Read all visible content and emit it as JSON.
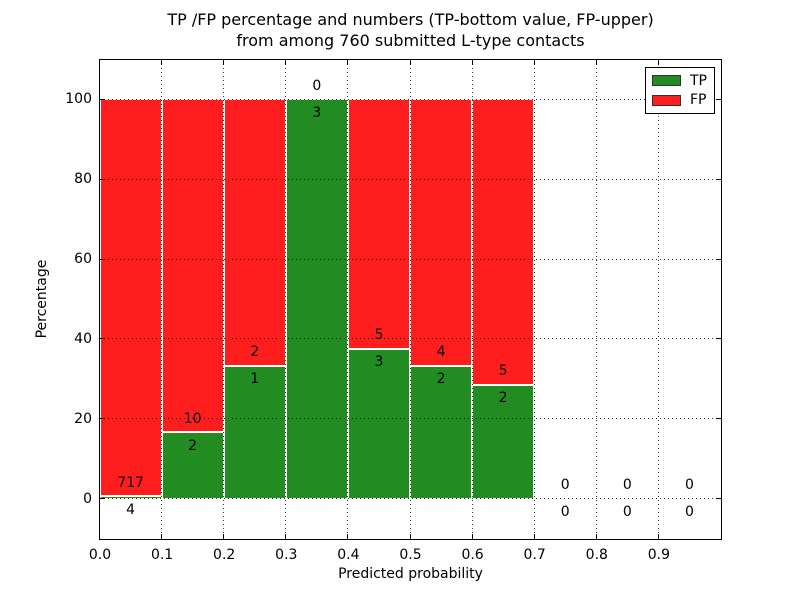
{
  "chart_data": {
    "type": "bar",
    "stacked": true,
    "title_line1": "TP /FP percentage and numbers (TP-bottom value, FP-upper)",
    "title_line2": "from among 760 submitted L-type contacts",
    "xlabel": "Predicted probability",
    "ylabel": "Percentage",
    "xlim": [
      0.0,
      1.0
    ],
    "ylim": [
      -10,
      110
    ],
    "x_tick_labels": [
      "0.0",
      "0.1",
      "0.2",
      "0.3",
      "0.4",
      "0.5",
      "0.6",
      "0.7",
      "0.8",
      "0.9"
    ],
    "x_tick_values": [
      0.0,
      0.1,
      0.2,
      0.3,
      0.4,
      0.5,
      0.6,
      0.7,
      0.8,
      0.9
    ],
    "y_tick_labels": [
      "0",
      "20",
      "40",
      "60",
      "80",
      "100"
    ],
    "y_tick_values": [
      0,
      20,
      40,
      60,
      80,
      100
    ],
    "grid_style": "dotted",
    "tp_color": "#228B22",
    "fp_color": "#FF1E1E",
    "legend": [
      {
        "label": "TP",
        "color": "#228B22"
      },
      {
        "label": "FP",
        "color": "#FF1E1E"
      }
    ],
    "bins": [
      {
        "range": [
          0.0,
          0.1
        ],
        "tp": 4,
        "fp": 717,
        "tp_pct": 0.55
      },
      {
        "range": [
          0.1,
          0.2
        ],
        "tp": 2,
        "fp": 10,
        "tp_pct": 16.67
      },
      {
        "range": [
          0.2,
          0.3
        ],
        "tp": 1,
        "fp": 2,
        "tp_pct": 33.33
      },
      {
        "range": [
          0.3,
          0.4
        ],
        "tp": 3,
        "fp": 0,
        "tp_pct": 100
      },
      {
        "range": [
          0.4,
          0.5
        ],
        "tp": 3,
        "fp": 5,
        "tp_pct": 37.5
      },
      {
        "range": [
          0.5,
          0.6
        ],
        "tp": 2,
        "fp": 4,
        "tp_pct": 33.33
      },
      {
        "range": [
          0.6,
          0.7
        ],
        "tp": 2,
        "fp": 5,
        "tp_pct": 28.57
      },
      {
        "range": [
          0.7,
          0.8
        ],
        "tp": 0,
        "fp": 0,
        "tp_pct": 0
      },
      {
        "range": [
          0.8,
          0.9
        ],
        "tp": 0,
        "fp": 0,
        "tp_pct": 0
      },
      {
        "range": [
          0.9,
          1.0
        ],
        "tp": 0,
        "fp": 0,
        "tp_pct": 0
      }
    ]
  }
}
